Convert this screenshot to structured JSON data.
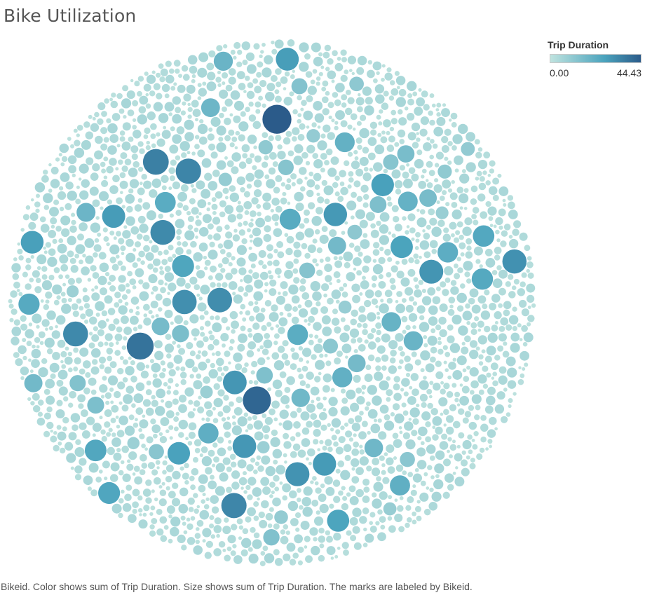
{
  "chart_data": {
    "type": "packed-bubble",
    "title": "Bike Utilization",
    "legend": {
      "title": "Trip Duration",
      "min_label": "0.00",
      "max_label": "44.43",
      "min": 0.0,
      "max": 44.43,
      "placement": "top-right",
      "color_low": "#bfe3df",
      "color_high": "#2b5b8a"
    },
    "caption": "Bikeid.  Color shows sum of Trip Duration.  Size shows sum of Trip Duration.  The marks are labeled by Bikeid.",
    "bubbles_background": {
      "count": 5200,
      "value_min": 0.5,
      "value_max": 5.5
    },
    "highlighted_trip_durations": [
      44.43,
      41.8,
      38.5,
      35.2,
      34.1,
      33.7,
      33.0,
      32.8,
      32.1,
      31.5,
      31.0,
      30.6,
      30.2,
      29.8,
      29.5,
      29.1,
      28.7,
      28.3,
      27.9,
      27.5,
      27.1,
      26.8,
      26.4,
      26.0,
      25.6,
      25.3,
      24.9,
      24.5,
      24.1,
      23.8,
      23.4,
      23.0,
      22.7,
      22.3,
      21.9,
      21.6,
      21.2,
      20.8,
      20.4,
      20.1,
      19.7,
      19.4,
      19.0,
      18.7,
      18.3,
      18.0,
      17.6,
      17.3,
      16.9,
      16.6,
      16.2,
      15.9,
      15.6,
      15.2,
      14.9,
      14.6,
      14.2,
      13.9,
      13.6,
      13.3,
      13.0,
      12.7,
      12.4,
      12.1,
      11.8,
      11.5,
      11.2,
      10.9,
      10.6,
      10.3,
      10.0,
      9.8,
      9.5,
      9.2,
      9.0,
      8.7,
      8.5,
      8.2,
      8.0,
      7.8
    ]
  }
}
